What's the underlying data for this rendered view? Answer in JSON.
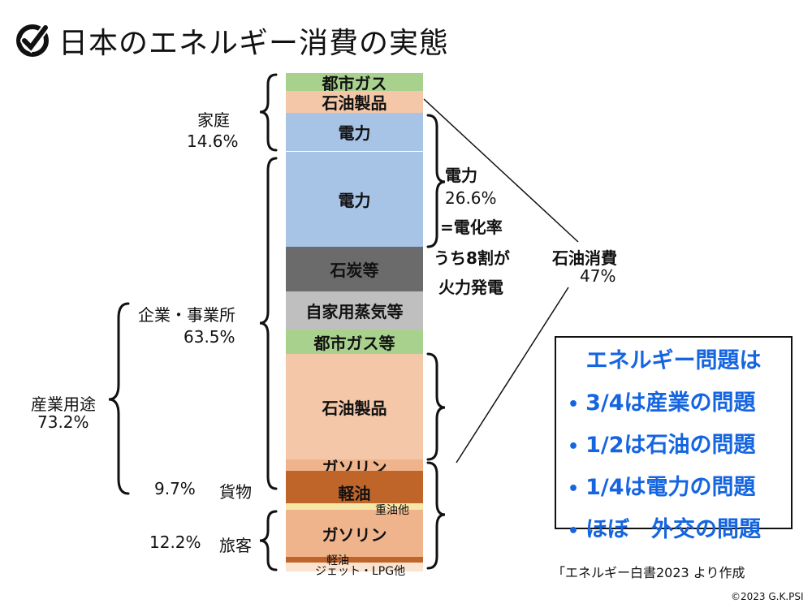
{
  "title": "日本のエネルギー消費の実態",
  "logo_icon": "check-logo-icon",
  "bar": {
    "segments": [
      {
        "id": "home-city-gas",
        "label": "都市ガス",
        "color": "#a9d18e"
      },
      {
        "id": "home-oil",
        "label": "石油製品",
        "color": "#f4c7a8"
      },
      {
        "id": "home-electricity",
        "label": "電力",
        "color": "#a7c3e6"
      },
      {
        "id": "biz-electricity",
        "label": "電力",
        "color": "#a7c3e6"
      },
      {
        "id": "coal",
        "label": "石炭等",
        "color": "#6b6b6b"
      },
      {
        "id": "steam",
        "label": "自家用蒸気等",
        "color": "#bfbfbf"
      },
      {
        "id": "biz-city-gas",
        "label": "都市ガス等",
        "color": "#a9d18e"
      },
      {
        "id": "biz-oil",
        "label": "石油製品",
        "color": "#f4c7a8"
      },
      {
        "id": "freight-gasoline",
        "label": "ガソリン",
        "color": "#f0b48c"
      },
      {
        "id": "freight-diesel",
        "label": "軽油",
        "color": "#c0652a"
      },
      {
        "id": "freight-heavy",
        "label": "重油他",
        "color": "#f6e6a8"
      },
      {
        "id": "pass-gasoline",
        "label": "ガソリン",
        "color": "#f0b48c"
      },
      {
        "id": "pass-diesel",
        "label": "軽油",
        "color": "#c0652a"
      },
      {
        "id": "pass-jet",
        "label": "ジェット・LPG他",
        "color": "#fbe3cf"
      }
    ]
  },
  "left_labels": {
    "home_name": "家庭",
    "home_pct": "14.6%",
    "business": "企業・事業所",
    "business_pct": "63.5%",
    "industry": "産業用途",
    "industry_pct": "73.2%",
    "freight_pct": "9.7%",
    "freight": "貨物",
    "passenger_pct": "12.2%",
    "passenger": "旅客"
  },
  "right_labels": {
    "elec_title": "電力",
    "elec_pct": "26.6%",
    "elec_rate": "=電化率",
    "elec_note1": "うち8割が",
    "elec_note2": "火力発電",
    "oil_title": "石油消費",
    "oil_pct": "47%"
  },
  "conclusion": {
    "heading": "エネルギー問題は",
    "items": [
      "3/4は産業の問題",
      "1/2は石油の問題",
      "1/4は電力の問題",
      "ほぼ　外交の問題"
    ],
    "bullet": "•",
    "color": "#1565e0"
  },
  "source": "「エネルギー白書2023 より作成",
  "copyright": "©2023 G.K.PSI"
}
